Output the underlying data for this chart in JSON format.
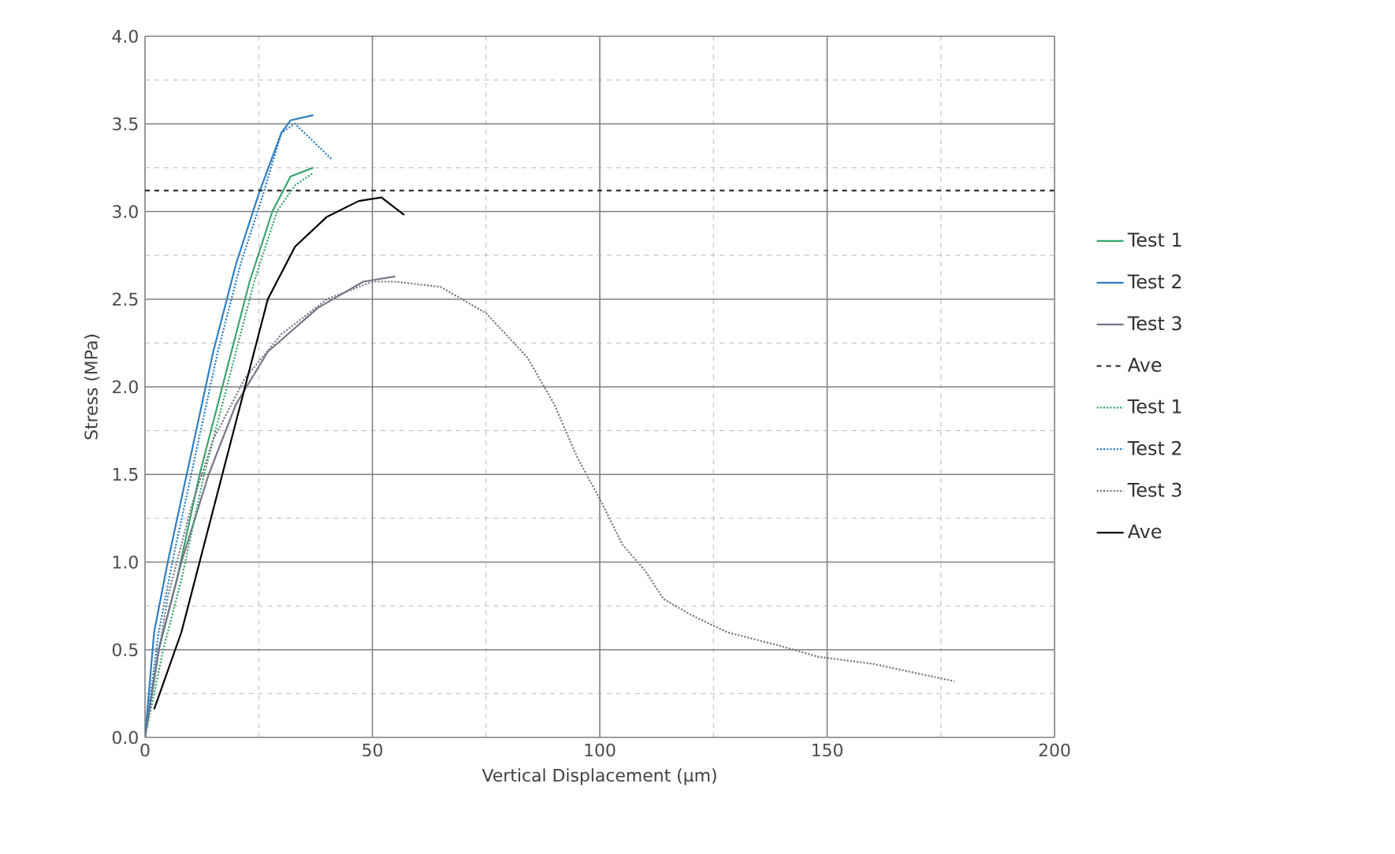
{
  "chart_data": {
    "type": "line",
    "xlabel": "Vertical Displacement (µm)",
    "ylabel": "Stress (MPa)",
    "xlim": [
      0,
      200
    ],
    "ylim": [
      0,
      4
    ],
    "xticks": [
      0,
      50,
      100,
      150,
      200
    ],
    "yticks": [
      {
        "value": 0,
        "label": "0.0"
      },
      {
        "value": 0.5,
        "label": "0.5"
      },
      {
        "value": 1,
        "label": "1.0"
      },
      {
        "value": 1.5,
        "label": "1.5"
      },
      {
        "value": 2,
        "label": "2.0"
      },
      {
        "value": 2.5,
        "label": "2.5"
      },
      {
        "value": 3,
        "label": "3.0"
      },
      {
        "value": 3.5,
        "label": "3.5"
      },
      {
        "value": 4,
        "label": "4.0"
      }
    ],
    "grid": true,
    "legend": "right",
    "marker": "none",
    "series": [
      {
        "name": "Test 1",
        "color": "#3aa36e",
        "line_style": "solid",
        "x": [
          0,
          3,
          7,
          12,
          18,
          23,
          28,
          32,
          37
        ],
        "values": [
          0,
          0.5,
          0.9,
          1.5,
          2.1,
          2.6,
          3.0,
          3.2,
          3.25
        ]
      },
      {
        "name": "Test 2",
        "color": "#2e7fc1",
        "line_style": "solid",
        "x": [
          0,
          2,
          5,
          10,
          15,
          20,
          25,
          30,
          32,
          37
        ],
        "values": [
          0,
          0.6,
          1.0,
          1.6,
          2.2,
          2.7,
          3.1,
          3.45,
          3.52,
          3.55
        ]
      },
      {
        "name": "Test 3",
        "color": "#777788",
        "line_style": "solid",
        "x": [
          0,
          3,
          8,
          14,
          20,
          27,
          38,
          48,
          55
        ],
        "values": [
          0,
          0.5,
          1.0,
          1.5,
          1.9,
          2.2,
          2.45,
          2.6,
          2.63
        ]
      },
      {
        "name": "Ave",
        "color": "#333333",
        "line_style": "dashed",
        "x": [
          0,
          200
        ],
        "values": [
          3.12,
          3.12
        ]
      },
      {
        "name": "Test 1",
        "color": "#3aa36e",
        "line_style": "dotted",
        "x": [
          0,
          4,
          8,
          13,
          19,
          24,
          29,
          33,
          37
        ],
        "values": [
          0,
          0.5,
          0.9,
          1.5,
          2.1,
          2.6,
          3.0,
          3.15,
          3.22
        ]
      },
      {
        "name": "Test 2",
        "color": "#2e7fc1",
        "line_style": "dotted",
        "x": [
          0,
          3,
          6,
          11,
          16,
          21,
          26,
          30,
          33,
          41
        ],
        "values": [
          0,
          0.6,
          1.0,
          1.6,
          2.2,
          2.7,
          3.1,
          3.45,
          3.5,
          3.3
        ]
      },
      {
        "name": "Test 3",
        "color": "#777788",
        "line_style": "dotted",
        "x": [
          0,
          5,
          10,
          15,
          22,
          30,
          40,
          50,
          55,
          65,
          75,
          84,
          90,
          95,
          100,
          105,
          110,
          114,
          120,
          128,
          140,
          148,
          160,
          178
        ],
        "values": [
          0,
          0.8,
          1.3,
          1.7,
          2.05,
          2.3,
          2.5,
          2.6,
          2.6,
          2.57,
          2.42,
          2.17,
          1.9,
          1.6,
          1.36,
          1.1,
          0.95,
          0.79,
          0.7,
          0.6,
          0.52,
          0.46,
          0.42,
          0.32
        ]
      },
      {
        "name": "Ave",
        "color": "#000000",
        "line_style": "solid",
        "x": [
          2,
          8,
          13,
          17,
          22,
          27,
          33,
          40,
          47,
          52,
          57
        ],
        "values": [
          0.16,
          0.6,
          1.1,
          1.5,
          2.0,
          2.5,
          2.8,
          2.97,
          3.06,
          3.08,
          2.98
        ]
      }
    ]
  }
}
